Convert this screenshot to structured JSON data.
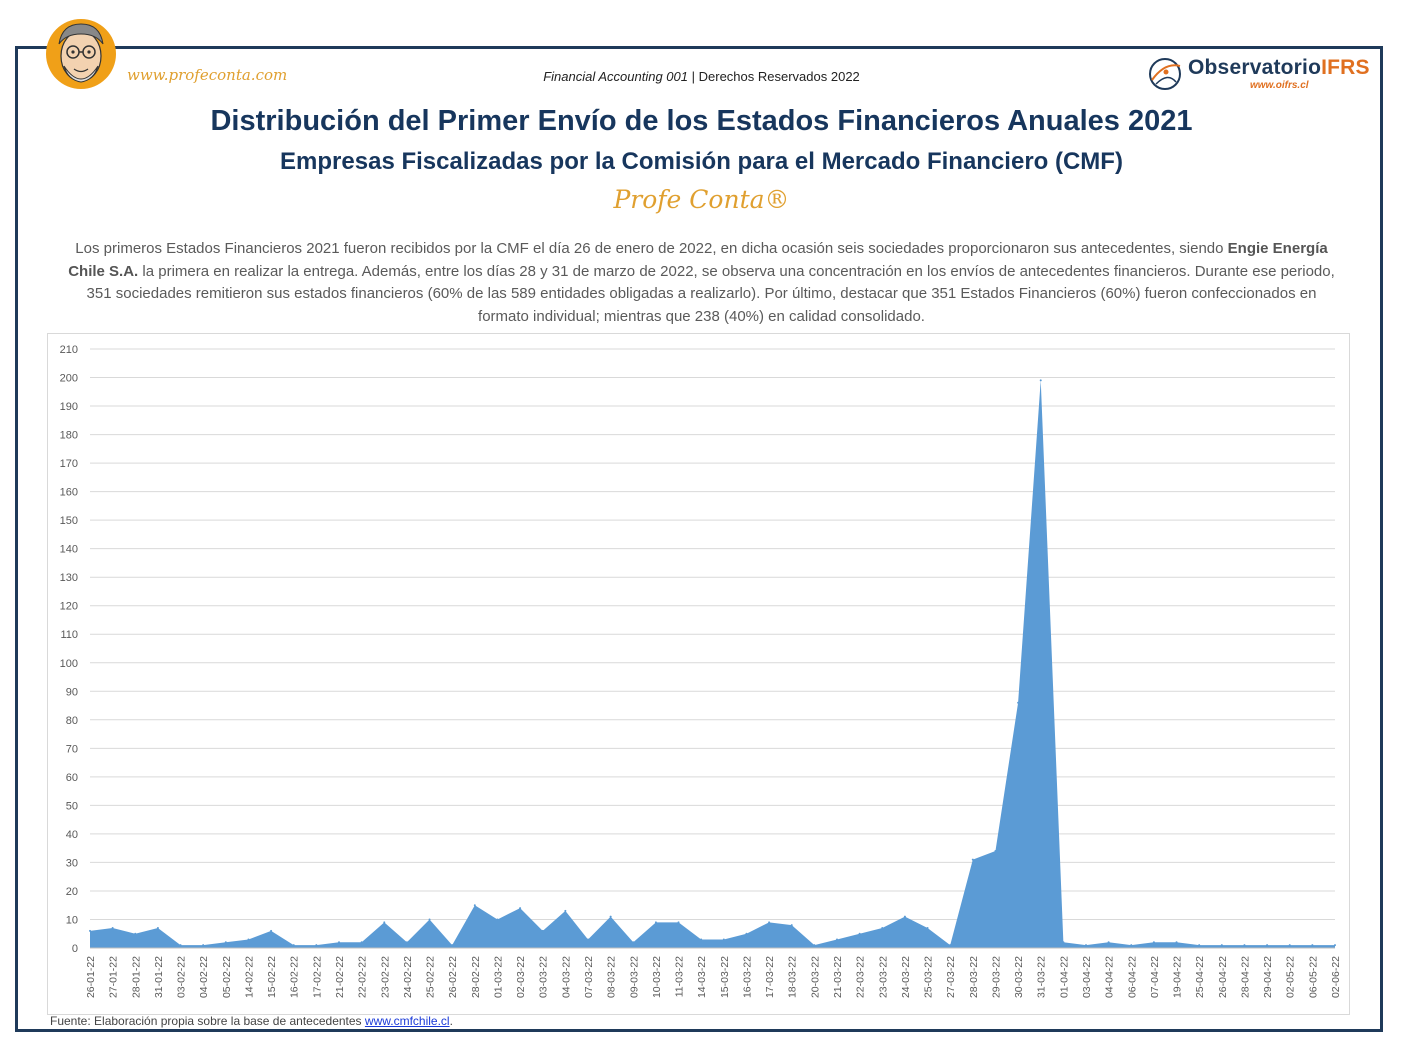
{
  "header": {
    "site": "www.profeconta.com",
    "course": "Financial Accounting 001",
    "separator": "|",
    "rights": "Derechos Reservados 2022",
    "logo_name_a": "Observatorio",
    "logo_name_b": "IFRS",
    "logo_url": "www.oifrs.cl"
  },
  "title": "Distribución del Primer Envío de los Estados Financieros Anuales 2021",
  "subtitle": "Empresas Fiscalizadas por la Comisión para el Mercado Financiero (CMF)",
  "brand": "Profe Conta®",
  "description": {
    "part1": "Los primeros Estados Financieros 2021 fueron recibidos por la CMF el día 26 de enero de 2022, en dicha ocasión seis sociedades proporcionaron sus antecedentes, siendo",
    "bold": "Engie Energía Chile S.A.",
    "part2": "la primera en realizar la entrega. Además, entre los días 28 y 31 de marzo de 2022, se observa una concentración en los envíos de antecedentes financieros. Durante ese periodo, 351 sociedades remitieron sus estados financieros (60% de las 589 entidades obligadas a realizarlo). Por último, destacar que 351 Estados Financieros (60%) fueron confeccionados en formato individual; mientras que 238 (40%) en calidad consolidado."
  },
  "source": {
    "text": "Fuente: Elaboración propia sobre la base de antecedentes",
    "link": "www.cmfchile.cl",
    "end": "."
  },
  "colors": {
    "area": "#5b9bd5",
    "grid": "#d9d9d9",
    "frame": "#1f3a5a",
    "title": "#17365d",
    "brand": "#e0a030"
  },
  "chart_data": {
    "type": "area",
    "categories": [
      "26-01-22",
      "27-01-22",
      "28-01-22",
      "31-01-22",
      "03-02-22",
      "04-02-22",
      "05-02-22",
      "14-02-22",
      "15-02-22",
      "16-02-22",
      "17-02-22",
      "21-02-22",
      "22-02-22",
      "23-02-22",
      "24-02-22",
      "25-02-22",
      "26-02-22",
      "28-02-22",
      "01-03-22",
      "02-03-22",
      "03-03-22",
      "04-03-22",
      "07-03-22",
      "08-03-22",
      "09-03-22",
      "10-03-22",
      "11-03-22",
      "14-03-22",
      "15-03-22",
      "16-03-22",
      "17-03-22",
      "18-03-22",
      "20-03-22",
      "21-03-22",
      "22-03-22",
      "23-03-22",
      "24-03-22",
      "25-03-22",
      "27-03-22",
      "28-03-22",
      "29-03-22",
      "30-03-22",
      "31-03-22",
      "01-04-22",
      "03-04-22",
      "04-04-22",
      "06-04-22",
      "07-04-22",
      "19-04-22",
      "25-04-22",
      "26-04-22",
      "28-04-22",
      "29-04-22",
      "02-05-22",
      "06-05-22",
      "02-06-22"
    ],
    "values": [
      6,
      7,
      5,
      7,
      1,
      1,
      2,
      3,
      6,
      1,
      1,
      2,
      2,
      9,
      2,
      10,
      1,
      15,
      10,
      14,
      6,
      13,
      3,
      11,
      2,
      9,
      9,
      3,
      3,
      5,
      9,
      8,
      1,
      3,
      5,
      7,
      11,
      7,
      1,
      31,
      34,
      86,
      199,
      2,
      1,
      2,
      1,
      2,
      2,
      1,
      1,
      1,
      1,
      1,
      1,
      1
    ],
    "ylim": [
      0,
      210
    ],
    "yticks": [
      0,
      10,
      20,
      30,
      40,
      50,
      60,
      70,
      80,
      90,
      100,
      110,
      120,
      130,
      140,
      150,
      160,
      170,
      180,
      190,
      200,
      210
    ],
    "grid": true,
    "legend": "none"
  }
}
